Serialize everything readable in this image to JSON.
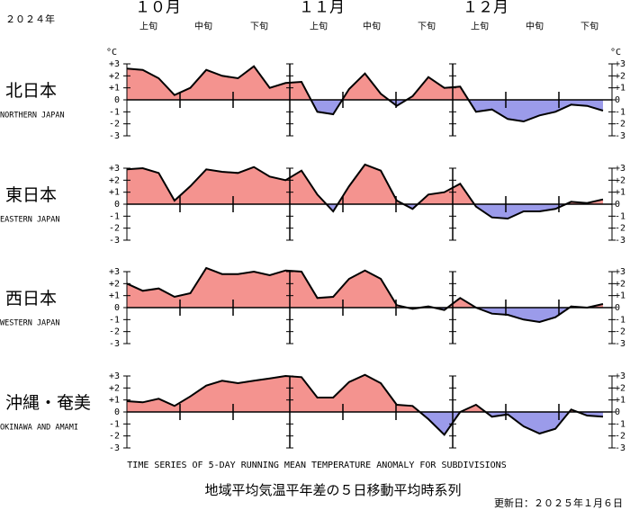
{
  "header": {
    "year": "２０２４年",
    "months": [
      "１０月",
      "１１月",
      "１２月"
    ],
    "periods": [
      "上旬",
      "中旬",
      "下旬"
    ],
    "unit": "°C"
  },
  "footer": {
    "caption": "TIME SERIES OF 5-DAY RUNNING MEAN TEMPERATURE ANOMALY FOR SUBDIVISIONS",
    "title": "地域平均気温平年差の５日移動平均時系列",
    "updated": "更新日：２０２５年１月６日"
  },
  "chart_data": [
    {
      "type": "area",
      "title": "北日本",
      "subtitle": "NORTHERN JAPAN",
      "positive_color": "#f4938f",
      "negative_color": "#9b9bea",
      "ylim": [
        -3,
        3
      ],
      "yticks": [
        {
          "value": 3,
          "label": "+3"
        },
        {
          "value": 2,
          "label": "+2"
        },
        {
          "value": 1,
          "label": "+1"
        },
        0,
        -1,
        -2,
        -3
      ],
      "values": [
        2.6,
        2.5,
        1.8,
        0.4,
        1.0,
        2.5,
        2.0,
        1.8,
        2.8,
        1.0,
        1.4,
        1.5,
        -1.0,
        -1.2,
        0.9,
        2.2,
        0.5,
        -0.5,
        0.3,
        1.9,
        1.0,
        1.1,
        -1.0,
        -0.8,
        -1.6,
        -1.8,
        -1.3,
        -1.0,
        -0.4,
        -0.5,
        -0.9
      ]
    },
    {
      "type": "area",
      "title": "東日本",
      "subtitle": "EASTERN JAPAN",
      "positive_color": "#f4938f",
      "negative_color": "#9b9bea",
      "ylim": [
        -3,
        3
      ],
      "yticks": [
        {
          "value": 3,
          "label": "+3"
        },
        {
          "value": 2,
          "label": "+2"
        },
        {
          "value": 1,
          "label": "+1"
        },
        0,
        -1,
        -2,
        -3
      ],
      "values": [
        2.9,
        3.0,
        2.6,
        0.3,
        1.5,
        2.9,
        2.7,
        2.6,
        3.1,
        2.3,
        2.0,
        2.8,
        0.8,
        -0.6,
        1.5,
        3.3,
        2.8,
        0.3,
        -0.4,
        0.8,
        1.0,
        1.7,
        -0.2,
        -1.1,
        -1.2,
        -0.6,
        -0.6,
        -0.4,
        0.2,
        0.1,
        0.4
      ]
    },
    {
      "type": "area",
      "title": "西日本",
      "subtitle": "WESTERN JAPAN",
      "positive_color": "#f4938f",
      "negative_color": "#9b9bea",
      "ylim": [
        -3,
        3
      ],
      "yticks": [
        {
          "value": 3,
          "label": "+3"
        },
        {
          "value": 2,
          "label": "+2"
        },
        {
          "value": 1,
          "label": "+1"
        },
        0,
        -1,
        -2,
        -3
      ],
      "values": [
        2.0,
        1.4,
        1.6,
        0.9,
        1.2,
        3.3,
        2.8,
        2.8,
        3.0,
        2.7,
        3.1,
        3.0,
        0.8,
        0.9,
        2.4,
        3.1,
        2.4,
        0.2,
        -0.1,
        0.1,
        -0.2,
        0.8,
        0.0,
        -0.5,
        -0.6,
        -1.0,
        -1.2,
        -0.8,
        0.1,
        0.0,
        0.3
      ]
    },
    {
      "type": "area",
      "title": "沖縄・奄美",
      "subtitle": "OKINAWA AND AMAMI",
      "positive_color": "#f4938f",
      "negative_color": "#9b9bea",
      "ylim": [
        -3,
        3
      ],
      "yticks": [
        {
          "value": 3,
          "label": "+3"
        },
        {
          "value": 2,
          "label": "+2"
        },
        {
          "value": 1,
          "label": "+1"
        },
        0,
        -1,
        -2,
        -3
      ],
      "values": [
        0.9,
        0.8,
        1.1,
        0.5,
        1.3,
        2.2,
        2.6,
        2.4,
        2.6,
        2.8,
        3.0,
        2.9,
        1.2,
        1.2,
        2.5,
        3.1,
        2.4,
        0.6,
        0.5,
        -0.6,
        -1.9,
        0.0,
        0.6,
        -0.4,
        -0.2,
        -1.2,
        -1.8,
        -1.4,
        0.2,
        -0.3,
        -0.4
      ]
    }
  ]
}
